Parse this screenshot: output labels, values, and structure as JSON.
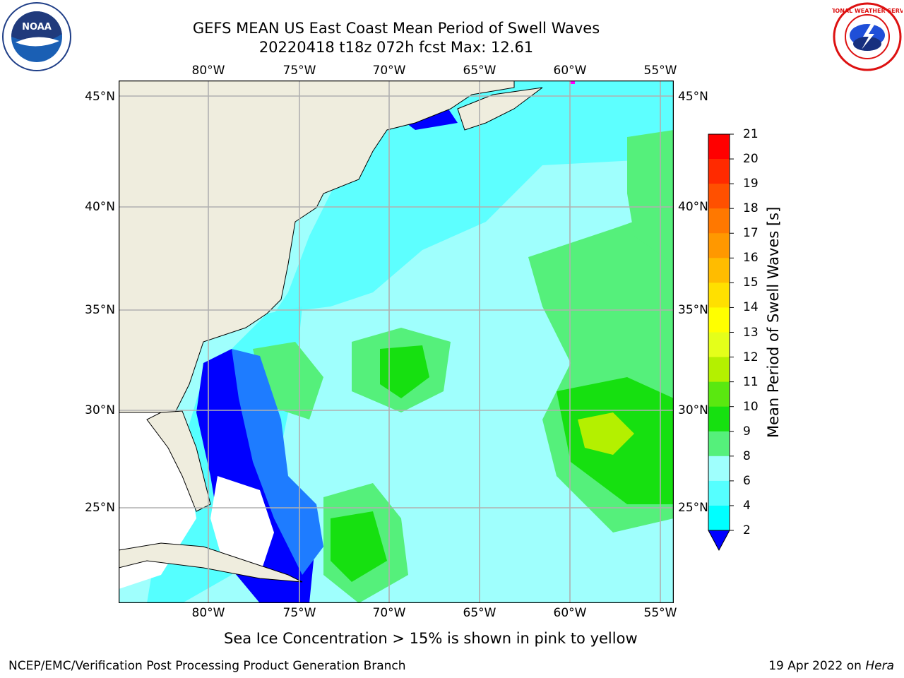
{
  "title": {
    "line1": "GEFS MEAN US East Coast Mean Period of Swell Waves",
    "line2": "20220418 t18z 072h fcst   Max: 12.61"
  },
  "map": {
    "lon_labels": [
      "80°W",
      "75°W",
      "70°W",
      "65°W",
      "60°W",
      "55°W"
    ],
    "lat_labels": [
      "45°N",
      "40°N",
      "35°N",
      "30°N",
      "25°N"
    ],
    "colors": {
      "land": "#efedde",
      "ocean_light": "#9ffffd",
      "ocean_cyan": "#55ffff",
      "deep_blue": "#0000ff",
      "mid_blue": "#1e7cff",
      "green_light": "#55f07b",
      "green": "#16e010",
      "ice_pink": "#ff00ff"
    }
  },
  "colorbar": {
    "label": "Mean Period of Swell Waves [s]",
    "ticks": [
      "21",
      "20",
      "19",
      "18",
      "17",
      "16",
      "15",
      "14",
      "13",
      "12",
      "11",
      "10",
      "9",
      "8",
      "6",
      "4",
      "2"
    ],
    "colors": [
      "#ff0000",
      "#ff2a00",
      "#ff5000",
      "#ff7800",
      "#ff9800",
      "#ffbc00",
      "#ffe000",
      "#ffff00",
      "#e4ff1a",
      "#b4f000",
      "#5ae810",
      "#16e010",
      "#55f07b",
      "#9ffffd",
      "#55ffff",
      "#00ffff",
      "#00ccff",
      "#0055ff",
      "#0000ff"
    ]
  },
  "caption": "Sea Ice Concentration > 15% is shown in pink to yellow",
  "footer": {
    "left": "NCEP/EMC/Verification Post Processing Product Generation Branch",
    "right_date": "19 Apr 2022 on ",
    "right_machine": "Hera"
  },
  "logos": {
    "noaa": "NOAA",
    "nws": "NATIONAL WEATHER SERVICE"
  }
}
